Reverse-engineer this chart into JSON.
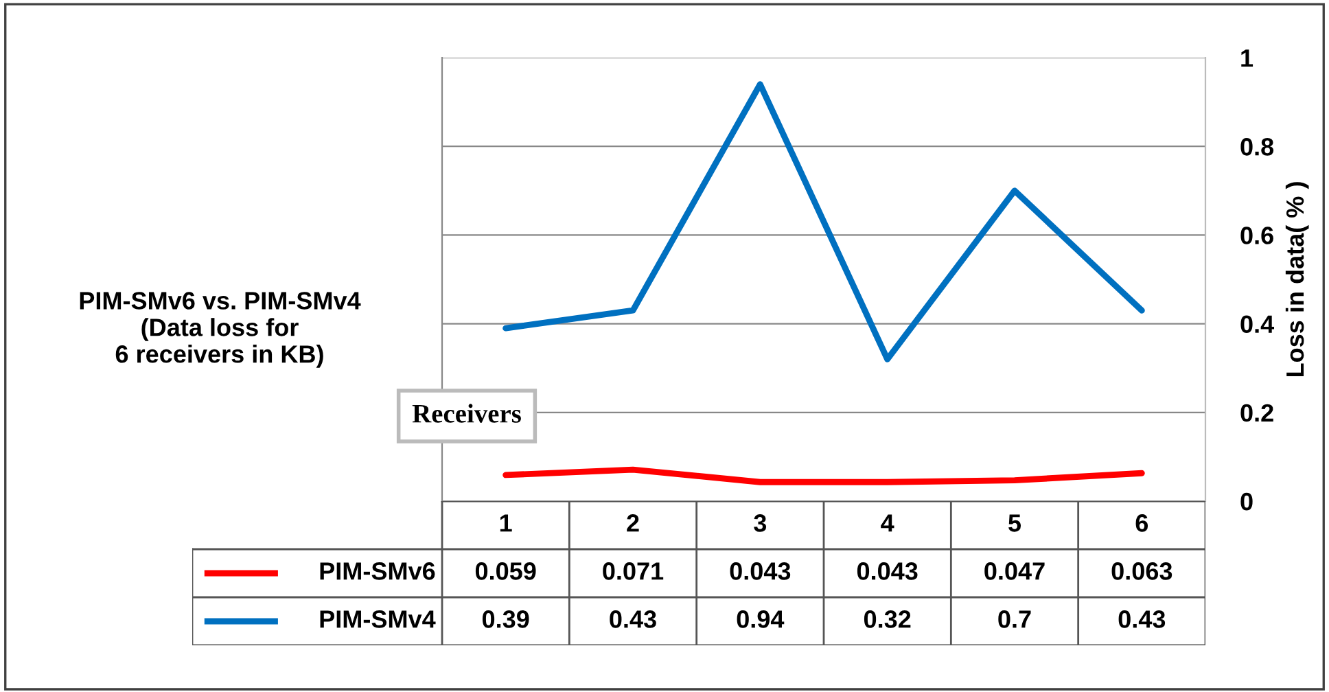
{
  "chart_data": {
    "type": "line",
    "title": "PIM-SMv6 vs. PIM-SMv4\n(Data loss for\n6 receivers in KB)",
    "xlabel": "Receivers",
    "ylabel": "Loss in data( % )",
    "categories": [
      "1",
      "2",
      "3",
      "4",
      "5",
      "6"
    ],
    "series": [
      {
        "name": "PIM-SMv6",
        "color": "#ff0000",
        "values": [
          0.059,
          0.071,
          0.043,
          0.043,
          0.047,
          0.063
        ]
      },
      {
        "name": "PIM-SMv4",
        "color": "#0070c0",
        "values": [
          0.39,
          0.43,
          0.94,
          0.32,
          0.7,
          0.43
        ]
      }
    ],
    "ylim": [
      0,
      1
    ],
    "yticks": [
      0,
      0.2,
      0.4,
      0.6,
      0.8,
      1
    ],
    "grid": "y",
    "legend": "bottom",
    "data_labels": true,
    "marker": "none",
    "line_style": "solid"
  }
}
